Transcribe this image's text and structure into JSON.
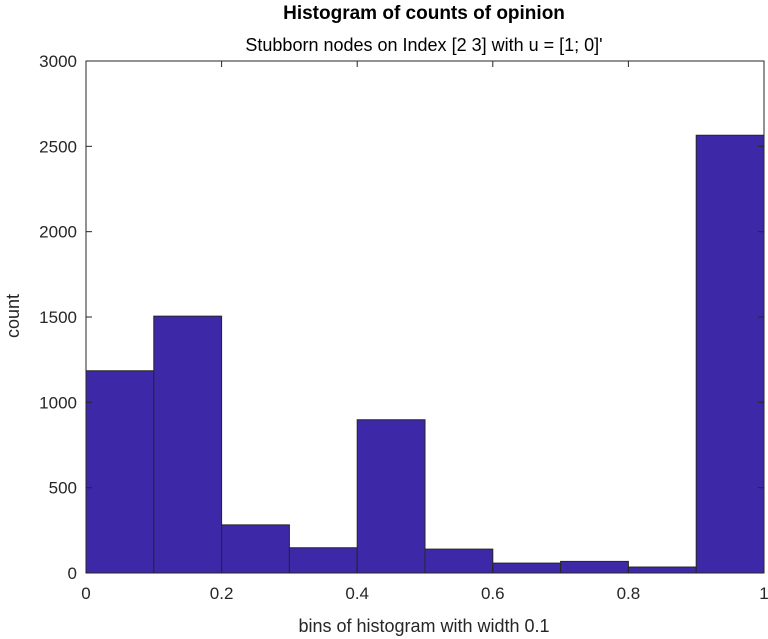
{
  "chart_data": {
    "type": "bar",
    "title": "Histogram of counts of opinion",
    "subtitle": "Stubborn nodes on Index [2 3] with u = [1; 0]'",
    "xlabel": "bins of histogram with width 0.1",
    "ylabel": "count",
    "bin_edges": [
      0,
      0.1,
      0.2,
      0.3,
      0.4,
      0.5,
      0.6,
      0.7,
      0.8,
      0.9,
      1.0
    ],
    "values": [
      1185,
      1505,
      282,
      148,
      898,
      140,
      58,
      68,
      35,
      2565
    ],
    "xlim": [
      0,
      1
    ],
    "ylim": [
      0,
      3000
    ],
    "xticks": [
      0,
      0.2,
      0.4,
      0.6,
      0.8,
      1
    ],
    "xtick_labels": [
      "0",
      "0.2",
      "0.4",
      "0.6",
      "0.8",
      "1"
    ],
    "yticks": [
      0,
      500,
      1000,
      1500,
      2000,
      2500,
      3000
    ],
    "ytick_labels": [
      "0",
      "500",
      "1000",
      "1500",
      "2000",
      "2500",
      "3000"
    ],
    "grid": false,
    "colors": {
      "bar_fill": "#3d28a8",
      "bar_edge": "#262626",
      "axis": "#262626"
    }
  }
}
